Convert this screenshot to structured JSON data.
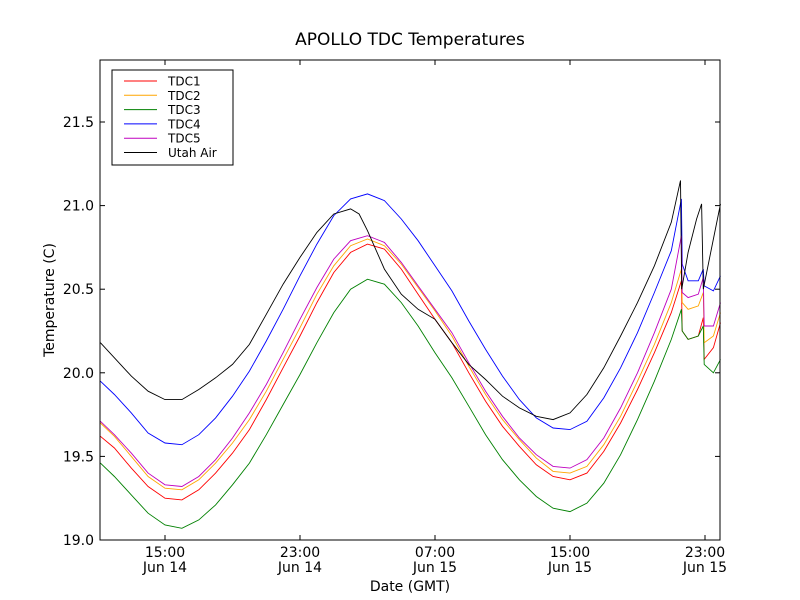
{
  "chart_data": {
    "type": "line",
    "title": "APOLLO TDC Temperatures",
    "xlabel": "Date (GMT)",
    "ylabel": "Temperature (C)",
    "ylim": [
      19.0,
      21.87
    ],
    "xlim_hours": [
      11.17,
      47.92
    ],
    "x_unit": "hours since Jun 14 00:00 GMT",
    "yticks": [
      {
        "value": 19.0,
        "label": "19.0"
      },
      {
        "value": 19.5,
        "label": "19.5"
      },
      {
        "value": 20.0,
        "label": "20.0"
      },
      {
        "value": 20.5,
        "label": "20.5"
      },
      {
        "value": 21.0,
        "label": "21.0"
      },
      {
        "value": 21.5,
        "label": "21.5"
      }
    ],
    "xticks": [
      {
        "value": 15,
        "time": "15:00",
        "date": "Jun 14"
      },
      {
        "value": 23,
        "time": "23:00",
        "date": "Jun 14"
      },
      {
        "value": 31,
        "time": "07:00",
        "date": "Jun 15"
      },
      {
        "value": 39,
        "time": "15:00",
        "date": "Jun 15"
      },
      {
        "value": 47,
        "time": "23:00",
        "date": "Jun 15"
      }
    ],
    "grid": false,
    "legend_position": "top-left",
    "series": [
      {
        "name": "TDC1",
        "color": "#ff0000",
        "points": [
          [
            11.17,
            19.62
          ],
          [
            12,
            19.55
          ],
          [
            13,
            19.43
          ],
          [
            14,
            19.32
          ],
          [
            15,
            19.25
          ],
          [
            16,
            19.24
          ],
          [
            17,
            19.3
          ],
          [
            18,
            19.4
          ],
          [
            19,
            19.52
          ],
          [
            20,
            19.66
          ],
          [
            21,
            19.84
          ],
          [
            22,
            20.03
          ],
          [
            23,
            20.22
          ],
          [
            24,
            20.42
          ],
          [
            25,
            20.6
          ],
          [
            26,
            20.72
          ],
          [
            27,
            20.77
          ],
          [
            28,
            20.74
          ],
          [
            29,
            20.62
          ],
          [
            30,
            20.47
          ],
          [
            31,
            20.32
          ],
          [
            32,
            20.18
          ],
          [
            33,
            20.0
          ],
          [
            34,
            19.83
          ],
          [
            35,
            19.68
          ],
          [
            36,
            19.56
          ],
          [
            37,
            19.45
          ],
          [
            38,
            19.38
          ],
          [
            39,
            19.36
          ],
          [
            40,
            19.4
          ],
          [
            41,
            19.53
          ],
          [
            42,
            19.7
          ],
          [
            43,
            19.9
          ],
          [
            44,
            20.12
          ],
          [
            45,
            20.36
          ],
          [
            45.6,
            20.55
          ],
          [
            45.65,
            20.25
          ],
          [
            46,
            20.2
          ],
          [
            46.6,
            20.22
          ],
          [
            46.9,
            20.33
          ],
          [
            46.95,
            20.08
          ],
          [
            47.5,
            20.15
          ],
          [
            47.92,
            20.3
          ]
        ]
      },
      {
        "name": "TDC2",
        "color": "#ffa500",
        "points": [
          [
            11.17,
            19.7
          ],
          [
            12,
            19.62
          ],
          [
            13,
            19.5
          ],
          [
            14,
            19.38
          ],
          [
            15,
            19.31
          ],
          [
            16,
            19.3
          ],
          [
            17,
            19.36
          ],
          [
            18,
            19.46
          ],
          [
            19,
            19.58
          ],
          [
            20,
            19.72
          ],
          [
            21,
            19.89
          ],
          [
            22,
            20.08
          ],
          [
            23,
            20.27
          ],
          [
            24,
            20.47
          ],
          [
            25,
            20.64
          ],
          [
            26,
            20.76
          ],
          [
            27,
            20.8
          ],
          [
            28,
            20.76
          ],
          [
            29,
            20.65
          ],
          [
            30,
            20.51
          ],
          [
            31,
            20.37
          ],
          [
            32,
            20.22
          ],
          [
            33,
            20.04
          ],
          [
            34,
            19.87
          ],
          [
            35,
            19.72
          ],
          [
            36,
            19.6
          ],
          [
            37,
            19.49
          ],
          [
            38,
            19.41
          ],
          [
            39,
            19.4
          ],
          [
            40,
            19.44
          ],
          [
            41,
            19.57
          ],
          [
            42,
            19.74
          ],
          [
            43,
            19.95
          ],
          [
            44,
            20.17
          ],
          [
            45,
            20.42
          ],
          [
            45.6,
            20.62
          ],
          [
            45.65,
            20.42
          ],
          [
            46,
            20.38
          ],
          [
            46.6,
            20.4
          ],
          [
            46.9,
            20.48
          ],
          [
            46.95,
            20.18
          ],
          [
            47.5,
            20.22
          ],
          [
            47.92,
            20.36
          ]
        ]
      },
      {
        "name": "TDC3",
        "color": "#008000",
        "points": [
          [
            11.17,
            19.46
          ],
          [
            12,
            19.38
          ],
          [
            13,
            19.27
          ],
          [
            14,
            19.16
          ],
          [
            15,
            19.09
          ],
          [
            16,
            19.07
          ],
          [
            17,
            19.12
          ],
          [
            18,
            19.21
          ],
          [
            19,
            19.33
          ],
          [
            20,
            19.46
          ],
          [
            21,
            19.63
          ],
          [
            22,
            19.81
          ],
          [
            23,
            19.99
          ],
          [
            24,
            20.18
          ],
          [
            25,
            20.36
          ],
          [
            26,
            20.5
          ],
          [
            27,
            20.56
          ],
          [
            28,
            20.53
          ],
          [
            29,
            20.42
          ],
          [
            30,
            20.28
          ],
          [
            31,
            20.12
          ],
          [
            32,
            19.97
          ],
          [
            33,
            19.8
          ],
          [
            34,
            19.63
          ],
          [
            35,
            19.48
          ],
          [
            36,
            19.36
          ],
          [
            37,
            19.26
          ],
          [
            38,
            19.19
          ],
          [
            39,
            19.17
          ],
          [
            40,
            19.22
          ],
          [
            41,
            19.34
          ],
          [
            42,
            19.51
          ],
          [
            43,
            19.72
          ],
          [
            44,
            19.95
          ],
          [
            45,
            20.2
          ],
          [
            45.6,
            20.38
          ],
          [
            45.65,
            20.25
          ],
          [
            46,
            20.2
          ],
          [
            46.6,
            20.22
          ],
          [
            46.9,
            20.28
          ],
          [
            46.95,
            20.05
          ],
          [
            47.5,
            20.0
          ],
          [
            47.92,
            20.08
          ]
        ]
      },
      {
        "name": "TDC4",
        "color": "#0000ff",
        "points": [
          [
            11.17,
            19.95
          ],
          [
            12,
            19.87
          ],
          [
            13,
            19.76
          ],
          [
            14,
            19.64
          ],
          [
            15,
            19.58
          ],
          [
            16,
            19.57
          ],
          [
            17,
            19.63
          ],
          [
            18,
            19.73
          ],
          [
            19,
            19.86
          ],
          [
            20,
            20.01
          ],
          [
            21,
            20.19
          ],
          [
            22,
            20.38
          ],
          [
            23,
            20.58
          ],
          [
            24,
            20.77
          ],
          [
            25,
            20.94
          ],
          [
            26,
            21.04
          ],
          [
            27,
            21.07
          ],
          [
            28,
            21.03
          ],
          [
            29,
            20.92
          ],
          [
            30,
            20.79
          ],
          [
            31,
            20.64
          ],
          [
            32,
            20.49
          ],
          [
            33,
            20.31
          ],
          [
            34,
            20.14
          ],
          [
            35,
            19.98
          ],
          [
            36,
            19.84
          ],
          [
            37,
            19.73
          ],
          [
            38,
            19.67
          ],
          [
            39,
            19.66
          ],
          [
            40,
            19.71
          ],
          [
            41,
            19.85
          ],
          [
            42,
            20.03
          ],
          [
            43,
            20.24
          ],
          [
            44,
            20.48
          ],
          [
            45,
            20.73
          ],
          [
            45.6,
            21.04
          ],
          [
            45.65,
            20.65
          ],
          [
            46,
            20.55
          ],
          [
            46.6,
            20.55
          ],
          [
            46.9,
            20.62
          ],
          [
            46.95,
            20.52
          ],
          [
            47.5,
            20.49
          ],
          [
            47.92,
            20.58
          ]
        ]
      },
      {
        "name": "TDC5",
        "color": "#bf00bf",
        "points": [
          [
            11.17,
            19.71
          ],
          [
            12,
            19.63
          ],
          [
            13,
            19.52
          ],
          [
            14,
            19.4
          ],
          [
            15,
            19.33
          ],
          [
            16,
            19.32
          ],
          [
            17,
            19.38
          ],
          [
            18,
            19.48
          ],
          [
            19,
            19.61
          ],
          [
            20,
            19.76
          ],
          [
            21,
            19.93
          ],
          [
            22,
            20.12
          ],
          [
            23,
            20.32
          ],
          [
            24,
            20.51
          ],
          [
            25,
            20.68
          ],
          [
            26,
            20.79
          ],
          [
            27,
            20.82
          ],
          [
            28,
            20.78
          ],
          [
            29,
            20.66
          ],
          [
            30,
            20.52
          ],
          [
            31,
            20.38
          ],
          [
            32,
            20.24
          ],
          [
            33,
            20.06
          ],
          [
            34,
            19.89
          ],
          [
            35,
            19.74
          ],
          [
            36,
            19.61
          ],
          [
            37,
            19.51
          ],
          [
            38,
            19.44
          ],
          [
            39,
            19.43
          ],
          [
            40,
            19.48
          ],
          [
            41,
            19.61
          ],
          [
            42,
            19.79
          ],
          [
            43,
            20.0
          ],
          [
            44,
            20.24
          ],
          [
            45,
            20.5
          ],
          [
            45.6,
            20.82
          ],
          [
            45.65,
            20.48
          ],
          [
            46,
            20.45
          ],
          [
            46.6,
            20.47
          ],
          [
            46.9,
            20.57
          ],
          [
            46.95,
            20.28
          ],
          [
            47.5,
            20.28
          ],
          [
            47.92,
            20.42
          ]
        ]
      },
      {
        "name": "Utah Air",
        "color": "#000000",
        "points": [
          [
            11.17,
            20.18
          ],
          [
            12,
            20.09
          ],
          [
            13,
            19.98
          ],
          [
            14,
            19.89
          ],
          [
            15,
            19.84
          ],
          [
            16,
            19.84
          ],
          [
            17,
            19.9
          ],
          [
            18,
            19.97
          ],
          [
            19,
            20.05
          ],
          [
            20,
            20.17
          ],
          [
            21,
            20.35
          ],
          [
            22,
            20.53
          ],
          [
            23,
            20.69
          ],
          [
            24,
            20.84
          ],
          [
            25,
            20.95
          ],
          [
            26,
            20.98
          ],
          [
            26.5,
            20.95
          ],
          [
            27,
            20.85
          ],
          [
            28,
            20.62
          ],
          [
            29,
            20.47
          ],
          [
            30,
            20.38
          ],
          [
            31,
            20.32
          ],
          [
            32,
            20.18
          ],
          [
            33,
            20.05
          ],
          [
            34,
            19.96
          ],
          [
            35,
            19.86
          ],
          [
            36,
            19.79
          ],
          [
            37,
            19.74
          ],
          [
            38,
            19.72
          ],
          [
            39,
            19.76
          ],
          [
            40,
            19.87
          ],
          [
            41,
            20.03
          ],
          [
            42,
            20.22
          ],
          [
            43,
            20.42
          ],
          [
            44,
            20.64
          ],
          [
            45,
            20.9
          ],
          [
            45.55,
            21.15
          ],
          [
            45.62,
            20.5
          ],
          [
            46,
            20.72
          ],
          [
            46.5,
            20.92
          ],
          [
            46.8,
            21.01
          ],
          [
            46.9,
            20.5
          ],
          [
            47.5,
            20.8
          ],
          [
            47.92,
            21.01
          ]
        ]
      }
    ]
  }
}
